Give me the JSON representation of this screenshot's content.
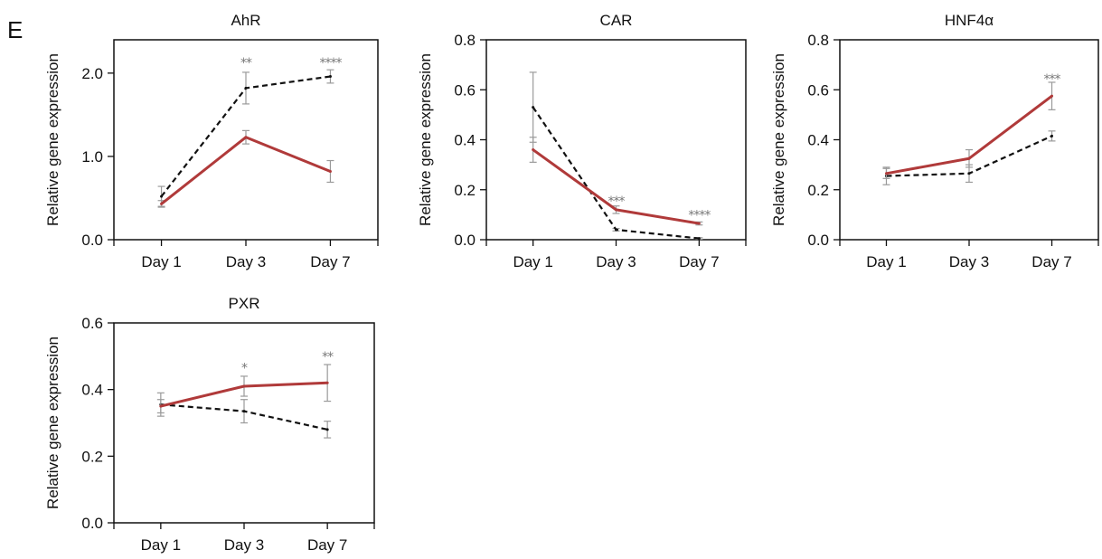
{
  "figure_label": "E",
  "chart_data": [
    {
      "type": "line",
      "title": "AhR",
      "ylabel": "Relative gene expression",
      "categories": [
        "Day 1",
        "Day 3",
        "Day 7"
      ],
      "ylim": [
        0,
        2.4
      ],
      "yticks": [
        "0.0",
        "1.0",
        "2.0"
      ],
      "yticks_values": [
        0,
        1,
        2
      ],
      "series": [
        {
          "style": "solid",
          "color": "#b03a3a",
          "values": [
            0.43,
            1.23,
            0.82
          ],
          "errors": [
            0.04,
            0.08,
            0.13
          ]
        },
        {
          "style": "dashed",
          "color": "#111111",
          "values": [
            0.52,
            1.82,
            1.96
          ],
          "errors": [
            0.12,
            0.19,
            0.08
          ]
        }
      ],
      "annotations": [
        {
          "category": "Day 3",
          "text": "**",
          "y": 2.13
        },
        {
          "category": "Day 7",
          "text": "****",
          "y": 2.13
        }
      ]
    },
    {
      "type": "line",
      "title": "CAR",
      "ylabel": "Relative gene expression",
      "categories": [
        "Day 1",
        "Day 3",
        "Day 7"
      ],
      "ylim": [
        0,
        0.8
      ],
      "yticks": [
        "0.0",
        "0.2",
        "0.4",
        "0.6",
        "0.8"
      ],
      "yticks_values": [
        0,
        0.2,
        0.4,
        0.6,
        0.8
      ],
      "series": [
        {
          "style": "solid",
          "color": "#b03a3a",
          "values": [
            0.36,
            0.12,
            0.065
          ],
          "errors": [
            0.05,
            0.015,
            0.006
          ]
        },
        {
          "style": "dashed",
          "color": "#111111",
          "values": [
            0.53,
            0.04,
            0.005
          ],
          "errors": [
            0.14,
            0.005,
            0.003
          ]
        }
      ],
      "annotations": [
        {
          "category": "Day 3",
          "text": "***",
          "y": 0.155
        },
        {
          "category": "Day 7",
          "text": "****",
          "y": 0.1
        }
      ]
    },
    {
      "type": "line",
      "title": "HNF4α",
      "ylabel": "Relative gene expression",
      "categories": [
        "Day 1",
        "Day 3",
        "Day 7"
      ],
      "ylim": [
        0,
        0.8
      ],
      "yticks": [
        "0.0",
        "0.2",
        "0.4",
        "0.6",
        "0.8"
      ],
      "yticks_values": [
        0,
        0.2,
        0.4,
        0.6,
        0.8
      ],
      "series": [
        {
          "style": "solid",
          "color": "#b03a3a",
          "values": [
            0.265,
            0.325,
            0.575
          ],
          "errors": [
            0.02,
            0.035,
            0.055
          ]
        },
        {
          "style": "dashed",
          "color": "#111111",
          "values": [
            0.255,
            0.265,
            0.415
          ],
          "errors": [
            0.035,
            0.035,
            0.02
          ]
        }
      ],
      "annotations": [
        {
          "category": "Day 7",
          "text": "***",
          "y": 0.645
        }
      ]
    },
    {
      "type": "line",
      "title": "PXR",
      "ylabel": "Relative gene expression",
      "categories": [
        "Day 1",
        "Day 3",
        "Day 7"
      ],
      "ylim": [
        0,
        0.6
      ],
      "yticks": [
        "0.0",
        "0.2",
        "0.4",
        "0.6"
      ],
      "yticks_values": [
        0,
        0.2,
        0.4,
        0.6
      ],
      "series": [
        {
          "style": "solid",
          "color": "#b03a3a",
          "values": [
            0.35,
            0.41,
            0.42
          ],
          "errors": [
            0.02,
            0.03,
            0.055
          ]
        },
        {
          "style": "dashed",
          "color": "#111111",
          "values": [
            0.355,
            0.335,
            0.28
          ],
          "errors": [
            0.035,
            0.035,
            0.025
          ]
        }
      ],
      "annotations": [
        {
          "category": "Day 3",
          "text": "*",
          "y": 0.465
        },
        {
          "category": "Day 7",
          "text": "**",
          "y": 0.5
        }
      ]
    }
  ]
}
